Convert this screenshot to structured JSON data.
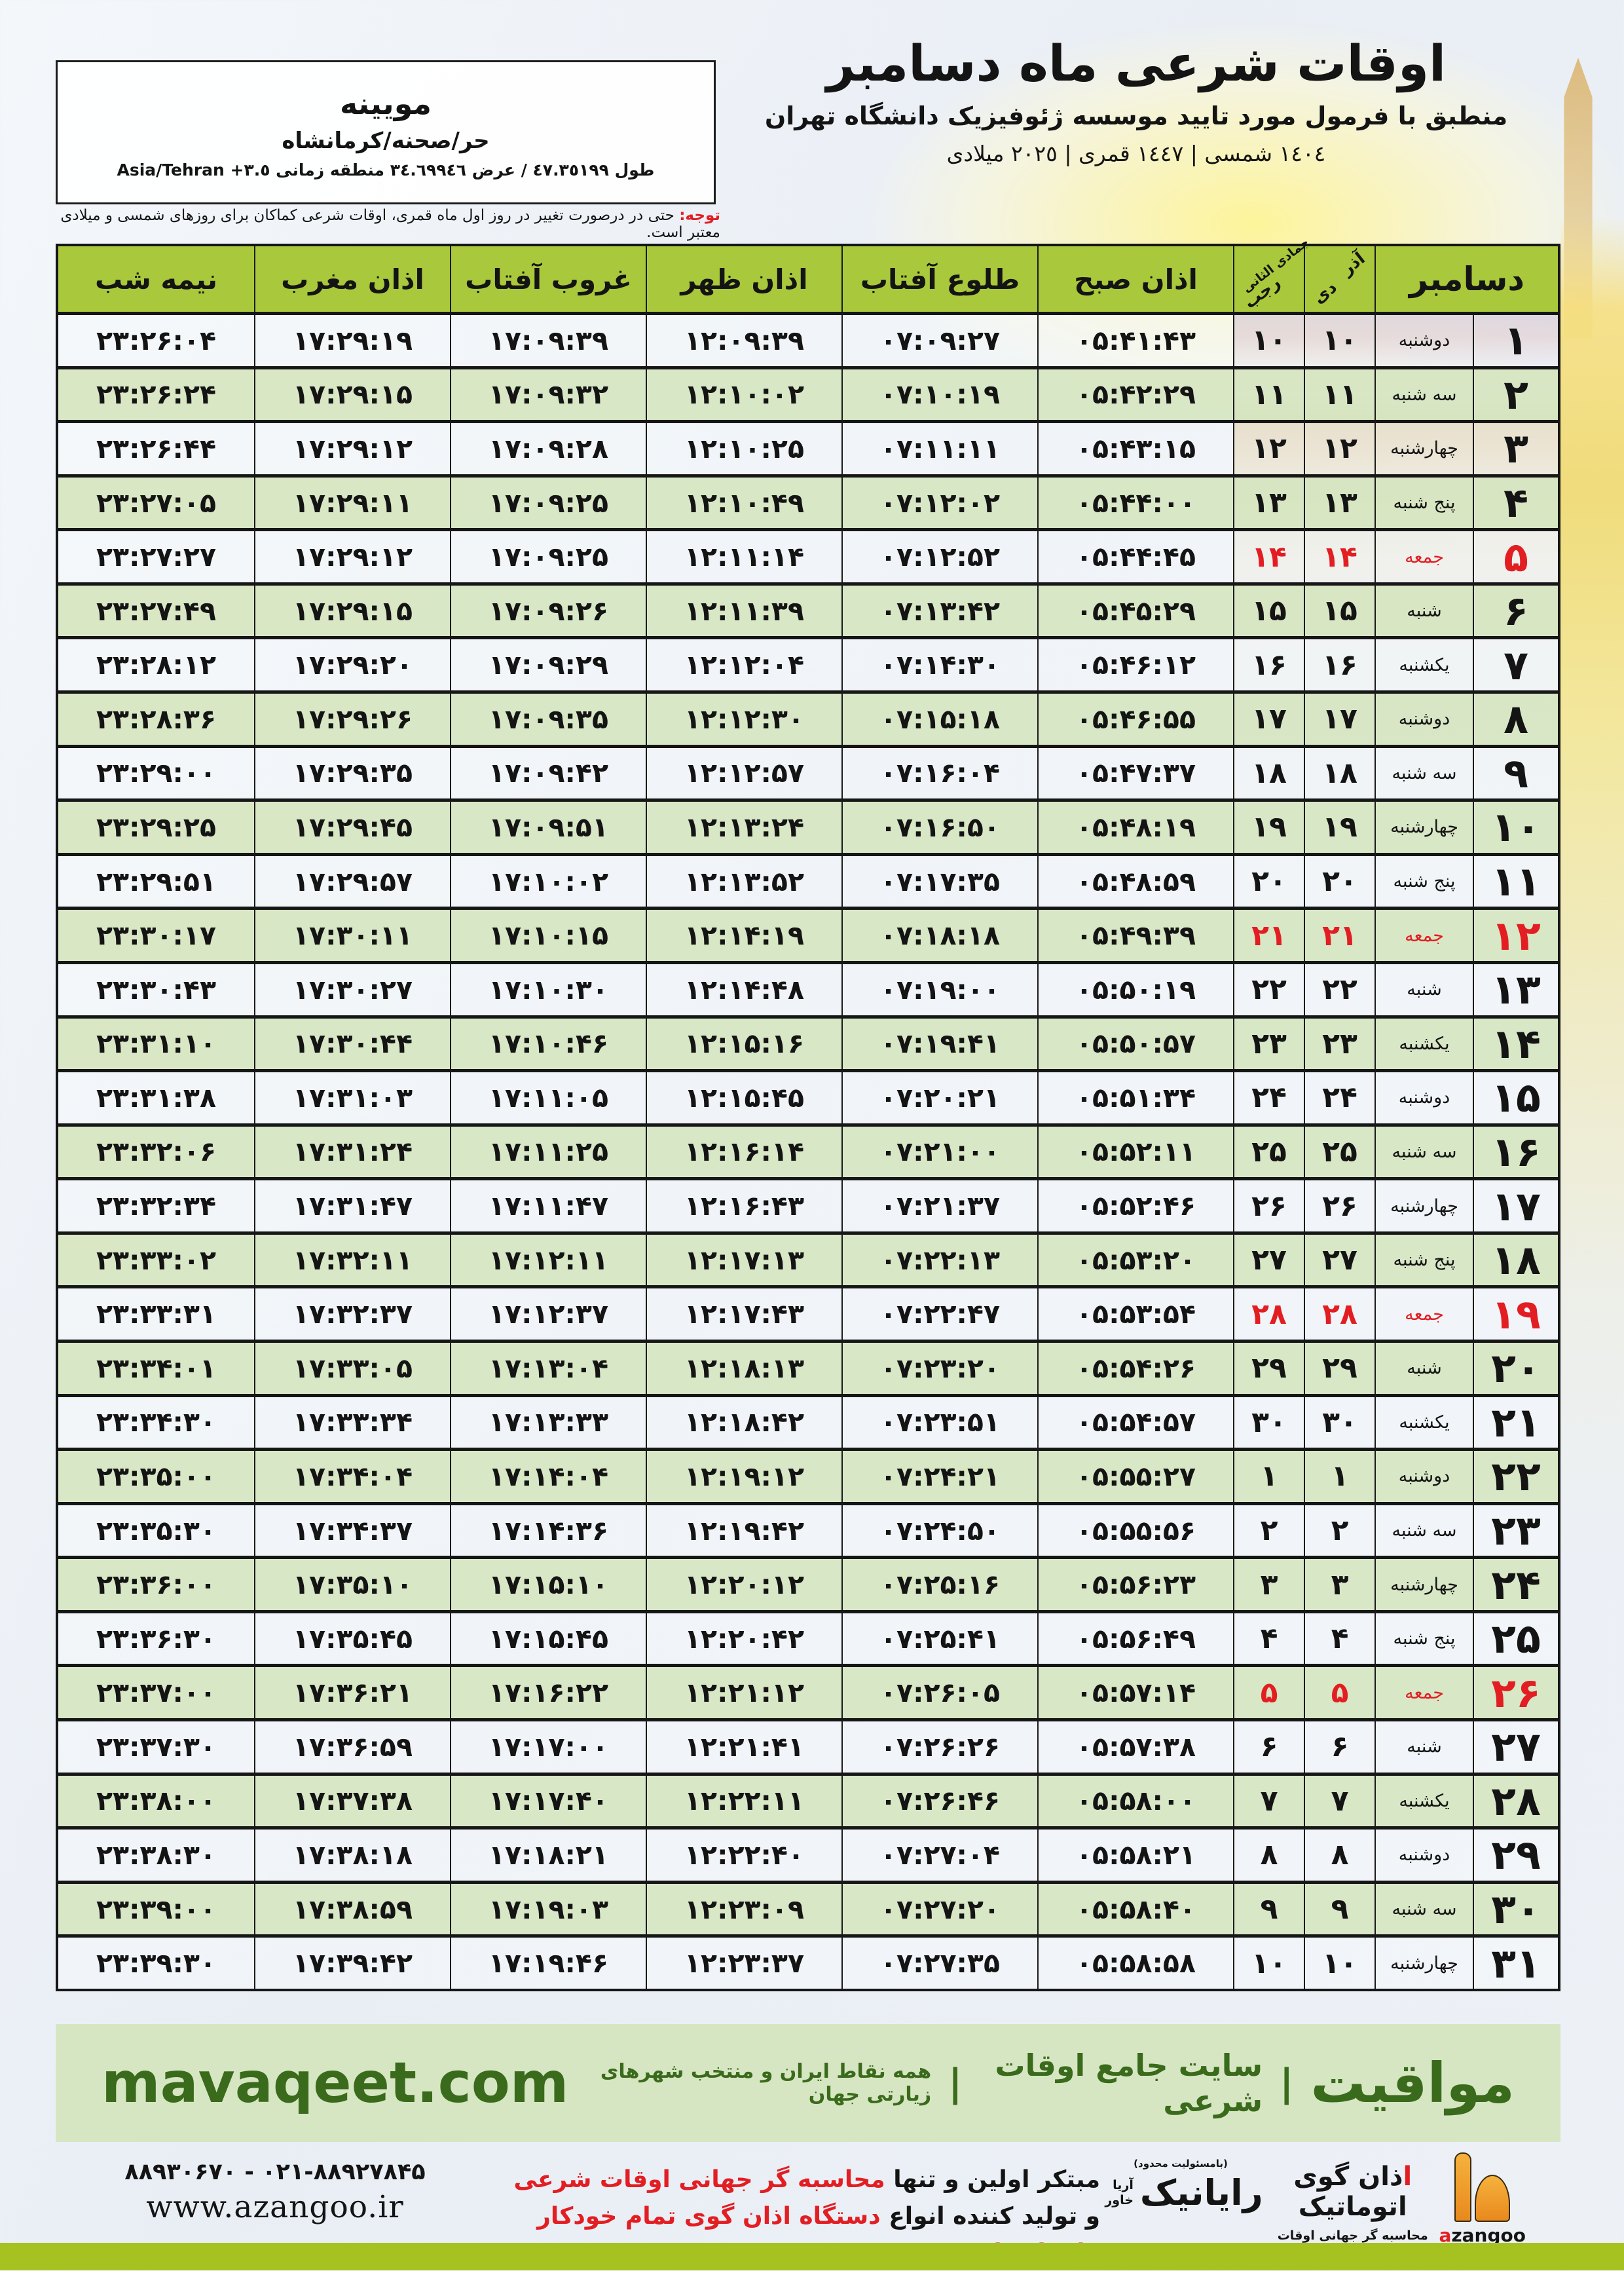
{
  "header": {
    "title": "اوقات شرعی ماه دسامبر",
    "subtitle": "منطبق با فرمول مورد تایید موسسه ژئوفیزیک دانشگاه تهران",
    "date_line": "١٤٠٤ شمسی | ١٤٤٧ قمری | ٢٠٢٥ میلادی"
  },
  "location": {
    "name": "مویینه",
    "region": "حر/صحنه/کرمانشاه",
    "coordinates": "طول ٤٧.٣٥١٩٩ / عرض ٣٤.٦٩٩٤٦ منطقه زمانی ٣.٥+ Asia/Tehran"
  },
  "notice": {
    "label": "توجه:",
    "text": "حتی در درصورت تغییر در روز اول ماه قمری، اوقات شرعی کماکان برای روزهای شمسی و میلادی معتبر است."
  },
  "colors": {
    "header_green": "#a9c83b",
    "row_green": "#d7e6c2",
    "row_light": "#f4f7f9",
    "accent_red": "#e21e23",
    "footer_band": "#d6e6c2",
    "footer_text": "#3a6a1b",
    "bottom_bar": "#a6c220"
  },
  "table": {
    "month_header": "دسامبر",
    "col_persian_top": "آذر",
    "col_persian_bottom": "دی",
    "col_lunar_top": "جمادی الثانی",
    "col_lunar_bottom": "رجب",
    "time_headers": [
      "اذان صبح",
      "طلوع آفتاب",
      "اذان ظهر",
      "غروب آفتاب",
      "اذان مغرب",
      "نیمه شب"
    ],
    "rows": [
      {
        "day": "۱",
        "weekday": "دوشنبه",
        "persian_day": "۱۰",
        "lunar_day": "۱۰",
        "fajr": "۰۵:۴۱:۴۳",
        "sunrise": "۰۷:۰۹:۲۷",
        "noon": "۱۲:۰۹:۳۹",
        "sunset": "۱۷:۰۹:۳۹",
        "maghrib": "۱۷:۲۹:۱۹",
        "midnight": "۲۳:۲۶:۰۴"
      },
      {
        "day": "۲",
        "weekday": "سه شنبه",
        "persian_day": "۱۱",
        "lunar_day": "۱۱",
        "fajr": "۰۵:۴۲:۲۹",
        "sunrise": "۰۷:۱۰:۱۹",
        "noon": "۱۲:۱۰:۰۲",
        "sunset": "۱۷:۰۹:۳۲",
        "maghrib": "۱۷:۲۹:۱۵",
        "midnight": "۲۳:۲۶:۲۴"
      },
      {
        "day": "۳",
        "weekday": "چهارشنبه",
        "persian_day": "۱۲",
        "lunar_day": "۱۲",
        "fajr": "۰۵:۴۳:۱۵",
        "sunrise": "۰۷:۱۱:۱۱",
        "noon": "۱۲:۱۰:۲۵",
        "sunset": "۱۷:۰۹:۲۸",
        "maghrib": "۱۷:۲۹:۱۲",
        "midnight": "۲۳:۲۶:۴۴"
      },
      {
        "day": "۴",
        "weekday": "پنج شنبه",
        "persian_day": "۱۳",
        "lunar_day": "۱۳",
        "fajr": "۰۵:۴۴:۰۰",
        "sunrise": "۰۷:۱۲:۰۲",
        "noon": "۱۲:۱۰:۴۹",
        "sunset": "۱۷:۰۹:۲۵",
        "maghrib": "۱۷:۲۹:۱۱",
        "midnight": "۲۳:۲۷:۰۵"
      },
      {
        "day": "۵",
        "weekday": "جمعه",
        "persian_day": "۱۴",
        "lunar_day": "۱۴",
        "fajr": "۰۵:۴۴:۴۵",
        "sunrise": "۰۷:۱۲:۵۲",
        "noon": "۱۲:۱۱:۱۴",
        "sunset": "۱۷:۰۹:۲۵",
        "maghrib": "۱۷:۲۹:۱۲",
        "midnight": "۲۳:۲۷:۲۷"
      },
      {
        "day": "۶",
        "weekday": "شنبه",
        "persian_day": "۱۵",
        "lunar_day": "۱۵",
        "fajr": "۰۵:۴۵:۲۹",
        "sunrise": "۰۷:۱۳:۴۲",
        "noon": "۱۲:۱۱:۳۹",
        "sunset": "۱۷:۰۹:۲۶",
        "maghrib": "۱۷:۲۹:۱۵",
        "midnight": "۲۳:۲۷:۴۹"
      },
      {
        "day": "۷",
        "weekday": "یکشنبه",
        "persian_day": "۱۶",
        "lunar_day": "۱۶",
        "fajr": "۰۵:۴۶:۱۲",
        "sunrise": "۰۷:۱۴:۳۰",
        "noon": "۱۲:۱۲:۰۴",
        "sunset": "۱۷:۰۹:۲۹",
        "maghrib": "۱۷:۲۹:۲۰",
        "midnight": "۲۳:۲۸:۱۲"
      },
      {
        "day": "۸",
        "weekday": "دوشنبه",
        "persian_day": "۱۷",
        "lunar_day": "۱۷",
        "fajr": "۰۵:۴۶:۵۵",
        "sunrise": "۰۷:۱۵:۱۸",
        "noon": "۱۲:۱۲:۳۰",
        "sunset": "۱۷:۰۹:۳۵",
        "maghrib": "۱۷:۲۹:۲۶",
        "midnight": "۲۳:۲۸:۳۶"
      },
      {
        "day": "۹",
        "weekday": "سه شنبه",
        "persian_day": "۱۸",
        "lunar_day": "۱۸",
        "fajr": "۰۵:۴۷:۳۷",
        "sunrise": "۰۷:۱۶:۰۴",
        "noon": "۱۲:۱۲:۵۷",
        "sunset": "۱۷:۰۹:۴۲",
        "maghrib": "۱۷:۲۹:۳۵",
        "midnight": "۲۳:۲۹:۰۰"
      },
      {
        "day": "۱۰",
        "weekday": "چهارشنبه",
        "persian_day": "۱۹",
        "lunar_day": "۱۹",
        "fajr": "۰۵:۴۸:۱۹",
        "sunrise": "۰۷:۱۶:۵۰",
        "noon": "۱۲:۱۳:۲۴",
        "sunset": "۱۷:۰۹:۵۱",
        "maghrib": "۱۷:۲۹:۴۵",
        "midnight": "۲۳:۲۹:۲۵"
      },
      {
        "day": "۱۱",
        "weekday": "پنج شنبه",
        "persian_day": "۲۰",
        "lunar_day": "۲۰",
        "fajr": "۰۵:۴۸:۵۹",
        "sunrise": "۰۷:۱۷:۳۵",
        "noon": "۱۲:۱۳:۵۲",
        "sunset": "۱۷:۱۰:۰۲",
        "maghrib": "۱۷:۲۹:۵۷",
        "midnight": "۲۳:۲۹:۵۱"
      },
      {
        "day": "۱۲",
        "weekday": "جمعه",
        "persian_day": "۲۱",
        "lunar_day": "۲۱",
        "fajr": "۰۵:۴۹:۳۹",
        "sunrise": "۰۷:۱۸:۱۸",
        "noon": "۱۲:۱۴:۱۹",
        "sunset": "۱۷:۱۰:۱۵",
        "maghrib": "۱۷:۳۰:۱۱",
        "midnight": "۲۳:۳۰:۱۷"
      },
      {
        "day": "۱۳",
        "weekday": "شنبه",
        "persian_day": "۲۲",
        "lunar_day": "۲۲",
        "fajr": "۰۵:۵۰:۱۹",
        "sunrise": "۰۷:۱۹:۰۰",
        "noon": "۱۲:۱۴:۴۸",
        "sunset": "۱۷:۱۰:۳۰",
        "maghrib": "۱۷:۳۰:۲۷",
        "midnight": "۲۳:۳۰:۴۳"
      },
      {
        "day": "۱۴",
        "weekday": "یکشنبه",
        "persian_day": "۲۳",
        "lunar_day": "۲۳",
        "fajr": "۰۵:۵۰:۵۷",
        "sunrise": "۰۷:۱۹:۴۱",
        "noon": "۱۲:۱۵:۱۶",
        "sunset": "۱۷:۱۰:۴۶",
        "maghrib": "۱۷:۳۰:۴۴",
        "midnight": "۲۳:۳۱:۱۰"
      },
      {
        "day": "۱۵",
        "weekday": "دوشنبه",
        "persian_day": "۲۴",
        "lunar_day": "۲۴",
        "fajr": "۰۵:۵۱:۳۴",
        "sunrise": "۰۷:۲۰:۲۱",
        "noon": "۱۲:۱۵:۴۵",
        "sunset": "۱۷:۱۱:۰۵",
        "maghrib": "۱۷:۳۱:۰۳",
        "midnight": "۲۳:۳۱:۳۸"
      },
      {
        "day": "۱۶",
        "weekday": "سه شنبه",
        "persian_day": "۲۵",
        "lunar_day": "۲۵",
        "fajr": "۰۵:۵۲:۱۱",
        "sunrise": "۰۷:۲۱:۰۰",
        "noon": "۱۲:۱۶:۱۴",
        "sunset": "۱۷:۱۱:۲۵",
        "maghrib": "۱۷:۳۱:۲۴",
        "midnight": "۲۳:۳۲:۰۶"
      },
      {
        "day": "۱۷",
        "weekday": "چهارشنبه",
        "persian_day": "۲۶",
        "lunar_day": "۲۶",
        "fajr": "۰۵:۵۲:۴۶",
        "sunrise": "۰۷:۲۱:۳۷",
        "noon": "۱۲:۱۶:۴۳",
        "sunset": "۱۷:۱۱:۴۷",
        "maghrib": "۱۷:۳۱:۴۷",
        "midnight": "۲۳:۳۲:۳۴"
      },
      {
        "day": "۱۸",
        "weekday": "پنج شنبه",
        "persian_day": "۲۷",
        "lunar_day": "۲۷",
        "fajr": "۰۵:۵۳:۲۰",
        "sunrise": "۰۷:۲۲:۱۳",
        "noon": "۱۲:۱۷:۱۳",
        "sunset": "۱۷:۱۲:۱۱",
        "maghrib": "۱۷:۳۲:۱۱",
        "midnight": "۲۳:۳۳:۰۲"
      },
      {
        "day": "۱۹",
        "weekday": "جمعه",
        "persian_day": "۲۸",
        "lunar_day": "۲۸",
        "fajr": "۰۵:۵۳:۵۴",
        "sunrise": "۰۷:۲۲:۴۷",
        "noon": "۱۲:۱۷:۴۳",
        "sunset": "۱۷:۱۲:۳۷",
        "maghrib": "۱۷:۳۲:۳۷",
        "midnight": "۲۳:۳۳:۳۱"
      },
      {
        "day": "۲۰",
        "weekday": "شنبه",
        "persian_day": "۲۹",
        "lunar_day": "۲۹",
        "fajr": "۰۵:۵۴:۲۶",
        "sunrise": "۰۷:۲۳:۲۰",
        "noon": "۱۲:۱۸:۱۳",
        "sunset": "۱۷:۱۳:۰۴",
        "maghrib": "۱۷:۳۳:۰۵",
        "midnight": "۲۳:۳۴:۰۱"
      },
      {
        "day": "۲۱",
        "weekday": "یکشنبه",
        "persian_day": "۳۰",
        "lunar_day": "۳۰",
        "fajr": "۰۵:۵۴:۵۷",
        "sunrise": "۰۷:۲۳:۵۱",
        "noon": "۱۲:۱۸:۴۲",
        "sunset": "۱۷:۱۳:۳۳",
        "maghrib": "۱۷:۳۳:۳۴",
        "midnight": "۲۳:۳۴:۳۰"
      },
      {
        "day": "۲۲",
        "weekday": "دوشنبه",
        "persian_day": "۱",
        "lunar_day": "۱",
        "fajr": "۰۵:۵۵:۲۷",
        "sunrise": "۰۷:۲۴:۲۱",
        "noon": "۱۲:۱۹:۱۲",
        "sunset": "۱۷:۱۴:۰۴",
        "maghrib": "۱۷:۳۴:۰۴",
        "midnight": "۲۳:۳۵:۰۰"
      },
      {
        "day": "۲۳",
        "weekday": "سه شنبه",
        "persian_day": "۲",
        "lunar_day": "۲",
        "fajr": "۰۵:۵۵:۵۶",
        "sunrise": "۰۷:۲۴:۵۰",
        "noon": "۱۲:۱۹:۴۲",
        "sunset": "۱۷:۱۴:۳۶",
        "maghrib": "۱۷:۳۴:۳۷",
        "midnight": "۲۳:۳۵:۳۰"
      },
      {
        "day": "۲۴",
        "weekday": "چهارشنبه",
        "persian_day": "۳",
        "lunar_day": "۳",
        "fajr": "۰۵:۵۶:۲۳",
        "sunrise": "۰۷:۲۵:۱۶",
        "noon": "۱۲:۲۰:۱۲",
        "sunset": "۱۷:۱۵:۱۰",
        "maghrib": "۱۷:۳۵:۱۰",
        "midnight": "۲۳:۳۶:۰۰"
      },
      {
        "day": "۲۵",
        "weekday": "پنج شنبه",
        "persian_day": "۴",
        "lunar_day": "۴",
        "fajr": "۰۵:۵۶:۴۹",
        "sunrise": "۰۷:۲۵:۴۱",
        "noon": "۱۲:۲۰:۴۲",
        "sunset": "۱۷:۱۵:۴۵",
        "maghrib": "۱۷:۳۵:۴۵",
        "midnight": "۲۳:۳۶:۳۰"
      },
      {
        "day": "۲۶",
        "weekday": "جمعه",
        "persian_day": "۵",
        "lunar_day": "۵",
        "fajr": "۰۵:۵۷:۱۴",
        "sunrise": "۰۷:۲۶:۰۵",
        "noon": "۱۲:۲۱:۱۲",
        "sunset": "۱۷:۱۶:۲۲",
        "maghrib": "۱۷:۳۶:۲۱",
        "midnight": "۲۳:۳۷:۰۰"
      },
      {
        "day": "۲۷",
        "weekday": "شنبه",
        "persian_day": "۶",
        "lunar_day": "۶",
        "fajr": "۰۵:۵۷:۳۸",
        "sunrise": "۰۷:۲۶:۲۶",
        "noon": "۱۲:۲۱:۴۱",
        "sunset": "۱۷:۱۷:۰۰",
        "maghrib": "۱۷:۳۶:۵۹",
        "midnight": "۲۳:۳۷:۳۰"
      },
      {
        "day": "۲۸",
        "weekday": "یکشنبه",
        "persian_day": "۷",
        "lunar_day": "۷",
        "fajr": "۰۵:۵۸:۰۰",
        "sunrise": "۰۷:۲۶:۴۶",
        "noon": "۱۲:۲۲:۱۱",
        "sunset": "۱۷:۱۷:۴۰",
        "maghrib": "۱۷:۳۷:۳۸",
        "midnight": "۲۳:۳۸:۰۰"
      },
      {
        "day": "۲۹",
        "weekday": "دوشنبه",
        "persian_day": "۸",
        "lunar_day": "۸",
        "fajr": "۰۵:۵۸:۲۱",
        "sunrise": "۰۷:۲۷:۰۴",
        "noon": "۱۲:۲۲:۴۰",
        "sunset": "۱۷:۱۸:۲۱",
        "maghrib": "۱۷:۳۸:۱۸",
        "midnight": "۲۳:۳۸:۳۰"
      },
      {
        "day": "۳۰",
        "weekday": "سه شنبه",
        "persian_day": "۹",
        "lunar_day": "۹",
        "fajr": "۰۵:۵۸:۴۰",
        "sunrise": "۰۷:۲۷:۲۰",
        "noon": "۱۲:۲۳:۰۹",
        "sunset": "۱۷:۱۹:۰۳",
        "maghrib": "۱۷:۳۸:۵۹",
        "midnight": "۲۳:۳۹:۰۰"
      },
      {
        "day": "۳۱",
        "weekday": "چهارشنبه",
        "persian_day": "۱۰",
        "lunar_day": "۱۰",
        "fajr": "۰۵:۵۸:۵۸",
        "sunrise": "۰۷:۲۷:۳۵",
        "noon": "۱۲:۲۳:۳۷",
        "sunset": "۱۷:۱۹:۴۶",
        "maghrib": "۱۷:۳۹:۴۲",
        "midnight": "۲۳:۳۹:۳۰"
      }
    ]
  },
  "footer_band": {
    "brand": "مواقیت",
    "separator": "|",
    "tagline": "سایت جامع اوقات شرعی",
    "subtagline": "همه نقاط ایران و منتخب شهرهای زیارتی جهان",
    "website": "mavaqeet.com"
  },
  "bottom": {
    "promo_line1_black": "مبتکر اولین و تنها ",
    "promo_line1_red": "محاسبه گر جهانی اوقات شرعی",
    "promo_line2_black": "و تولید کننده انواع ",
    "promo_line2_red": "دستگاه اذان گوی تمام خودکار ماهواره ای",
    "rayanik_note": "(بامسئولیت محدود)",
    "rayanik_name": "رایانیک",
    "rayanik_sub_top": "آریا",
    "rayanik_sub_bottom": "خاور",
    "azangoo_fa_first": "ا",
    "azangoo_fa_rest": "ذان گوی اتوماتیک",
    "azangoo_fa_sub": "محاسبه گر جهانی اوقات شرعی",
    "azangoo_latin_a": "a",
    "azangoo_latin_rest": "zangoo",
    "phones": "۰۲۱-۸۸۹۲۷۸۴۵ - ۸۸۹۳۰۶۷۰",
    "website": "www.azangoo.ir"
  }
}
